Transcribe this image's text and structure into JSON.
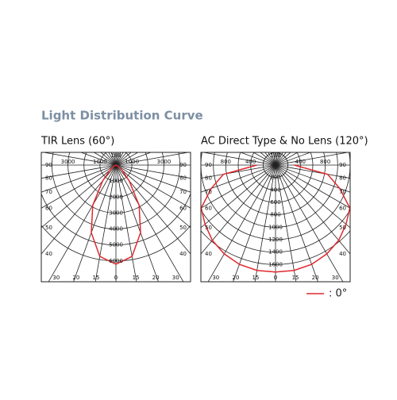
{
  "title": "Light Distribution Curve",
  "legend": {
    "name": ": 0°",
    "color": "#e0282e"
  },
  "chart_data": [
    {
      "type": "polar",
      "title": "TIR Lens (60°)",
      "rlim": [
        0,
        7000
      ],
      "rticks": [
        1000,
        2000,
        3000,
        4000,
        5000,
        6000
      ],
      "top_rticks": [
        3000,
        1000
      ],
      "side_angle_ticks": [
        90,
        80,
        70,
        60,
        50,
        40
      ],
      "top_angle_label": 180,
      "bottom_angle_labels": [
        30,
        20,
        15,
        0,
        15,
        20,
        30
      ],
      "series": [
        {
          "name": ": 0°",
          "color": "#e0282e",
          "angles": [
            -90,
            -80,
            -70,
            -60,
            -50,
            -40,
            -30,
            -20,
            -10,
            0,
            10,
            20,
            30,
            40,
            50,
            60,
            70,
            80,
            90
          ],
          "values": [
            0,
            0,
            50,
            150,
            500,
            1300,
            2900,
            4500,
            5800,
            6200,
            5800,
            4500,
            2900,
            1300,
            500,
            150,
            50,
            0,
            0
          ]
        }
      ]
    },
    {
      "type": "polar",
      "title": "AC Direct Type & No Lens (120°)",
      "rlim": [
        0,
        1800
      ],
      "rticks": [
        200,
        400,
        600,
        800,
        1000,
        1200,
        1400,
        1600
      ],
      "top_rticks": [
        800,
        400
      ],
      "side_angle_ticks": [
        90,
        80,
        70,
        60,
        50,
        40
      ],
      "top_angle_label": 180,
      "bottom_angle_labels": [
        30,
        20,
        15,
        0,
        15,
        20,
        30
      ],
      "series": [
        {
          "name": ": 0°",
          "color": "#e0282e",
          "angles": [
            -90,
            -80,
            -70,
            -60,
            -50,
            -40,
            -30,
            -20,
            -10,
            0,
            10,
            20,
            30,
            40,
            50,
            60,
            70,
            80,
            90
          ],
          "values": [
            300,
            850,
            1100,
            1380,
            1480,
            1580,
            1650,
            1700,
            1720,
            1720,
            1720,
            1700,
            1650,
            1580,
            1480,
            1380,
            1100,
            850,
            300
          ]
        }
      ]
    }
  ]
}
